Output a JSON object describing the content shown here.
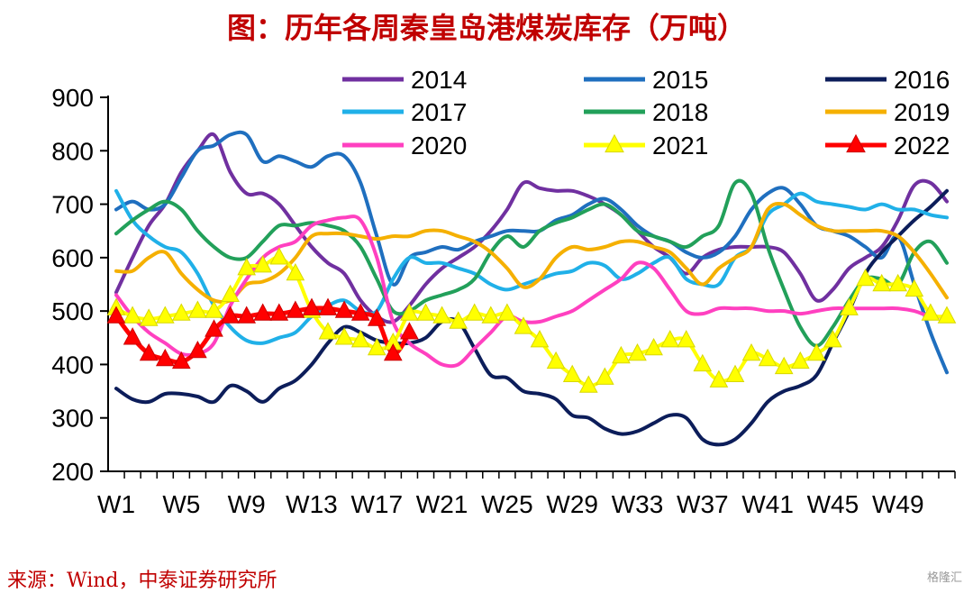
{
  "title": "图：历年各周秦皇岛港煤炭库存（万吨）",
  "source": "来源：Wind，中泰证券研究所",
  "watermark": "格隆汇",
  "chart_data": {
    "type": "line",
    "ylim": [
      200,
      900
    ],
    "yticks": [
      200,
      300,
      400,
      500,
      600,
      700,
      800,
      900
    ],
    "xticks": [
      {
        "label": "W1",
        "week": 1
      },
      {
        "label": "W5",
        "week": 5
      },
      {
        "label": "W9",
        "week": 9
      },
      {
        "label": "W13",
        "week": 13
      },
      {
        "label": "W17",
        "week": 17
      },
      {
        "label": "W21",
        "week": 21
      },
      {
        "label": "W25",
        "week": 25
      },
      {
        "label": "W29",
        "week": 29
      },
      {
        "label": "W33",
        "week": 33
      },
      {
        "label": "W37",
        "week": 37
      },
      {
        "label": "W41",
        "week": 41
      },
      {
        "label": "W45",
        "week": 45
      },
      {
        "label": "W49",
        "week": 49
      }
    ],
    "weeks": 52,
    "legend_placement": "top",
    "series": [
      {
        "name": "2014",
        "color": "#7030a0",
        "marker": "none",
        "values": [
          535,
          600,
          660,
          700,
          760,
          800,
          830,
          760,
          720,
          720,
          700,
          660,
          620,
          590,
          570,
          520,
          490,
          480,
          510,
          550,
          580,
          600,
          620,
          650,
          690,
          740,
          730,
          725,
          725,
          715,
          700,
          680,
          650,
          620,
          600,
          570,
          600,
          615,
          620,
          620,
          620,
          610,
          570,
          520,
          540,
          580,
          600,
          620,
          670,
          735,
          740,
          705
        ]
      },
      {
        "name": "2015",
        "color": "#1f6fbf",
        "marker": "none",
        "values": [
          690,
          705,
          690,
          700,
          750,
          800,
          810,
          830,
          830,
          780,
          790,
          780,
          770,
          790,
          790,
          740,
          640,
          550,
          600,
          610,
          620,
          615,
          630,
          640,
          650,
          650,
          650,
          670,
          680,
          700,
          710,
          690,
          660,
          640,
          630,
          610,
          600,
          610,
          640,
          690,
          720,
          730,
          700,
          660,
          650,
          640,
          620,
          600,
          640,
          550,
          460,
          385
        ]
      },
      {
        "name": "2016",
        "color": "#0c1d5a",
        "marker": "none",
        "values": [
          355,
          335,
          330,
          345,
          345,
          340,
          330,
          360,
          350,
          330,
          355,
          370,
          400,
          440,
          470,
          460,
          445,
          440,
          440,
          450,
          480,
          480,
          430,
          380,
          375,
          350,
          345,
          335,
          305,
          300,
          280,
          270,
          275,
          290,
          305,
          300,
          260,
          250,
          260,
          290,
          330,
          350,
          360,
          380,
          440,
          500,
          570,
          610,
          640,
          670,
          695,
          725
        ]
      },
      {
        "name": "2017",
        "color": "#20b0e8",
        "marker": "none",
        "values": [
          725,
          670,
          640,
          620,
          610,
          570,
          510,
          470,
          445,
          440,
          450,
          460,
          490,
          510,
          520,
          500,
          500,
          560,
          600,
          590,
          590,
          580,
          570,
          550,
          540,
          550,
          560,
          570,
          575,
          590,
          585,
          560,
          570,
          590,
          600,
          560,
          550,
          550,
          600,
          620,
          680,
          700,
          720,
          705,
          700,
          695,
          690,
          700,
          690,
          690,
          680,
          675
        ]
      },
      {
        "name": "2018",
        "color": "#22a05a",
        "marker": "none",
        "values": [
          645,
          670,
          690,
          705,
          690,
          650,
          620,
          600,
          600,
          630,
          660,
          660,
          665,
          660,
          650,
          620,
          560,
          500,
          500,
          520,
          530,
          540,
          560,
          610,
          640,
          620,
          650,
          665,
          675,
          690,
          700,
          680,
          650,
          640,
          630,
          620,
          640,
          660,
          740,
          720,
          620,
          540,
          470,
          435,
          470,
          520,
          560,
          560,
          550,
          610,
          630,
          590
        ]
      },
      {
        "name": "2019",
        "color": "#f5b000",
        "marker": "none",
        "values": [
          575,
          575,
          600,
          610,
          570,
          540,
          520,
          520,
          550,
          555,
          570,
          600,
          640,
          645,
          645,
          640,
          635,
          640,
          640,
          650,
          650,
          640,
          630,
          610,
          580,
          545,
          560,
          600,
          620,
          615,
          620,
          630,
          630,
          620,
          610,
          580,
          550,
          580,
          600,
          620,
          690,
          700,
          680,
          660,
          650,
          650,
          650,
          650,
          640,
          610,
          570,
          525
        ]
      },
      {
        "name": "2020",
        "color": "#ff40c0",
        "marker": "none",
        "values": [
          530,
          490,
          460,
          440,
          420,
          420,
          440,
          510,
          560,
          600,
          620,
          630,
          660,
          670,
          675,
          670,
          600,
          480,
          440,
          420,
          400,
          400,
          430,
          460,
          490,
          480,
          480,
          490,
          500,
          520,
          540,
          560,
          590,
          580,
          540,
          500,
          495,
          505,
          505,
          505,
          500,
          500,
          495,
          500,
          505,
          505,
          505,
          505,
          505,
          500,
          490,
          490
        ]
      },
      {
        "name": "2021",
        "color": "#ffff00",
        "marker": "triangle",
        "markerStroke": "#d8d800",
        "values": [
          505,
          490,
          485,
          490,
          495,
          500,
          500,
          530,
          580,
          585,
          600,
          570,
          500,
          460,
          450,
          445,
          430,
          440,
          495,
          495,
          490,
          480,
          495,
          490,
          495,
          470,
          445,
          405,
          380,
          360,
          375,
          415,
          420,
          430,
          445,
          445,
          400,
          370,
          380,
          420,
          410,
          395,
          405,
          420,
          445,
          505,
          560,
          550,
          550,
          540,
          495,
          490
        ]
      },
      {
        "name": "2022",
        "color": "#ff0000",
        "marker": "triangle",
        "markerStroke": "#cc0000",
        "values": [
          490,
          450,
          420,
          410,
          405,
          425,
          465,
          490,
          490,
          495,
          495,
          500,
          505,
          505,
          500,
          495,
          485,
          420,
          460
        ]
      }
    ]
  }
}
